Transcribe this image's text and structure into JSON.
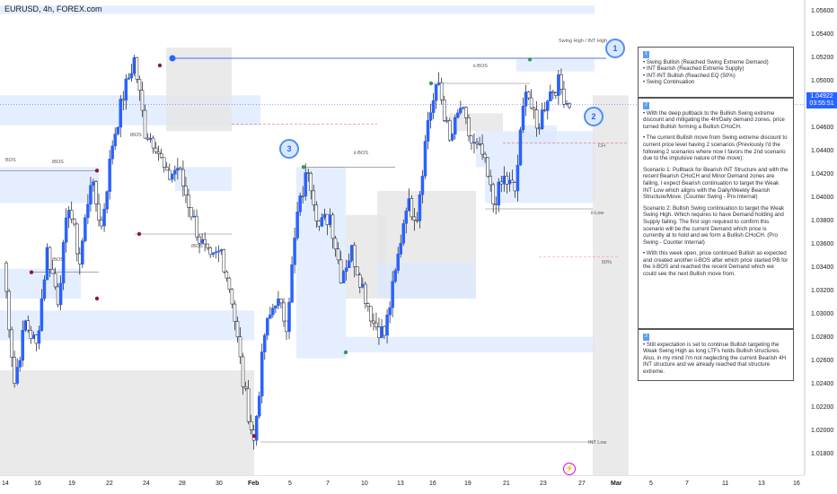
{
  "symbol_title": "EURUSD, 4h, FOREX.com",
  "price_axis": {
    "ticks": [
      "1.05600",
      "1.05400",
      "1.05200",
      "1.05000",
      "1.04800",
      "1.04600",
      "1.04400",
      "1.04200",
      "1.04000",
      "1.03800",
      "1.03600",
      "1.03400",
      "1.03200",
      "1.03000",
      "1.02800",
      "1.02600",
      "1.02400",
      "1.02200",
      "1.02000",
      "1.01800"
    ],
    "current_price": "1.04922",
    "countdown": "03:55:51"
  },
  "time_axis": {
    "ticks": [
      {
        "label": "14",
        "bold": false
      },
      {
        "label": "16",
        "bold": false
      },
      {
        "label": "19",
        "bold": false
      },
      {
        "label": "22",
        "bold": false
      },
      {
        "label": "24",
        "bold": false
      },
      {
        "label": "28",
        "bold": false
      },
      {
        "label": "30",
        "bold": false
      },
      {
        "label": "Feb",
        "bold": true
      },
      {
        "label": "5",
        "bold": false
      },
      {
        "label": "7",
        "bold": false
      },
      {
        "label": "10",
        "bold": false
      },
      {
        "label": "13",
        "bold": false
      },
      {
        "label": "16",
        "bold": false
      },
      {
        "label": "19",
        "bold": false
      },
      {
        "label": "21",
        "bold": false
      },
      {
        "label": "23",
        "bold": false
      },
      {
        "label": "27",
        "bold": false
      },
      {
        "label": "Mar",
        "bold": true
      },
      {
        "label": "5",
        "bold": false
      },
      {
        "label": "7",
        "bold": false
      },
      {
        "label": "11",
        "bold": false
      },
      {
        "label": "13",
        "bold": false
      },
      {
        "label": "16",
        "bold": false
      }
    ]
  },
  "chart_labels": {
    "swing_high": "Swing High / INT High",
    "int_low": "INT Low",
    "ii_low": "ii-Low",
    "eq_50": "50%",
    "bos": "BOS",
    "ibos": "iBOS",
    "iibos": "ii-BOS",
    "ch": "CH"
  },
  "badges": {
    "one": "1",
    "two": "2",
    "three": "3"
  },
  "annotation": {
    "section1_badge": "1",
    "section1_items": [
      "Swing Bullish (Reached Swing Extreme Demand)",
      "INT Bearish (Reached Extreme Supply)",
      "INT-INT Bullish (Reached EQ (50%)",
      "Swing Continuation"
    ],
    "section2_badge": "2",
    "section2_paragraphs": [
      "With the deep pullback to the Bullish Swing extreme discount and mitigating the 4H/Daily demand zones, price turned Bullish forming a Bullish CHoCH.",
      "The current Bullish move from Swing extreme discount to current price level having 2 scenarios (Previously I'd the following 2 scenarios where now I favors the 2nd scenario due to the impulsive nature of the move):",
      "Scenario 1: Pullback for Bearish INT Structure and with the recent Bearish CHoCH and Minor Demand zones are failing, I expect Bearish continuation to target the Weak INT Low which aligns with the Daily/Weekly Bearish Structure/Move. (Counter Swing - Pro Internal)",
      "Scenario 2: Bullish Swing continuation to target the Weak Swing High. Which requires to have Demand holding and Supply failing. The first sign required to confirm this scenario will be the current Demand which price is currently at to hold and we form a Bullish CHoCH. (Pro Swing - Counter Internal)",
      "With this week open, price continued Bullish as expected and created another ii-BOS after which price started PB for the ii-BOS and reached the recent Demand which we could see the next Bullish move from."
    ],
    "section3_badge": "3",
    "section3_paragraphs": [
      "Still expectation is set to continue Bullish targeting the Weak Swing High as long LTFs holds Bullish structures. Also, in my mind I'm not neglecting the current Bearish 4H INT structure and we already reached that structure extreme."
    ]
  },
  "colors": {
    "bull_candle": "#2962ff",
    "bear_candle": "#ffffff",
    "demand_zone": "#dbe8ff",
    "supply_zone": "#e5e5e5",
    "accent_blue": "#2962ff"
  },
  "chart_data": {
    "type": "candlestick",
    "symbol": "EURUSD",
    "timeframe": "4h",
    "ylim": [
      1.018,
      1.057
    ],
    "current_price": 1.04922,
    "x_ticks": [
      "14",
      "16",
      "19",
      "22",
      "24",
      "28",
      "30",
      "Feb",
      "5",
      "7",
      "10",
      "13",
      "16",
      "19",
      "21",
      "23",
      "27",
      "Mar",
      "5",
      "7",
      "11",
      "13",
      "16"
    ],
    "path": [
      1.036,
      1.026,
      1.031,
      1.029,
      1.037,
      1.033,
      1.041,
      1.036,
      1.043,
      1.039,
      1.046,
      1.05,
      1.053,
      1.047,
      1.046,
      1.043,
      1.044,
      1.041,
      1.038,
      1.036,
      1.037,
      1.033,
      1.026,
      1.021,
      1.03,
      1.033,
      1.031,
      1.04,
      1.044,
      1.039,
      1.04,
      1.035,
      1.037,
      1.034,
      1.031,
      1.03,
      1.035,
      1.041,
      1.04,
      1.048,
      1.051,
      1.046,
      1.049,
      1.046,
      1.045,
      1.041,
      1.043,
      1.042,
      1.051,
      1.047,
      1.05,
      1.051,
      1.049
    ]
  }
}
